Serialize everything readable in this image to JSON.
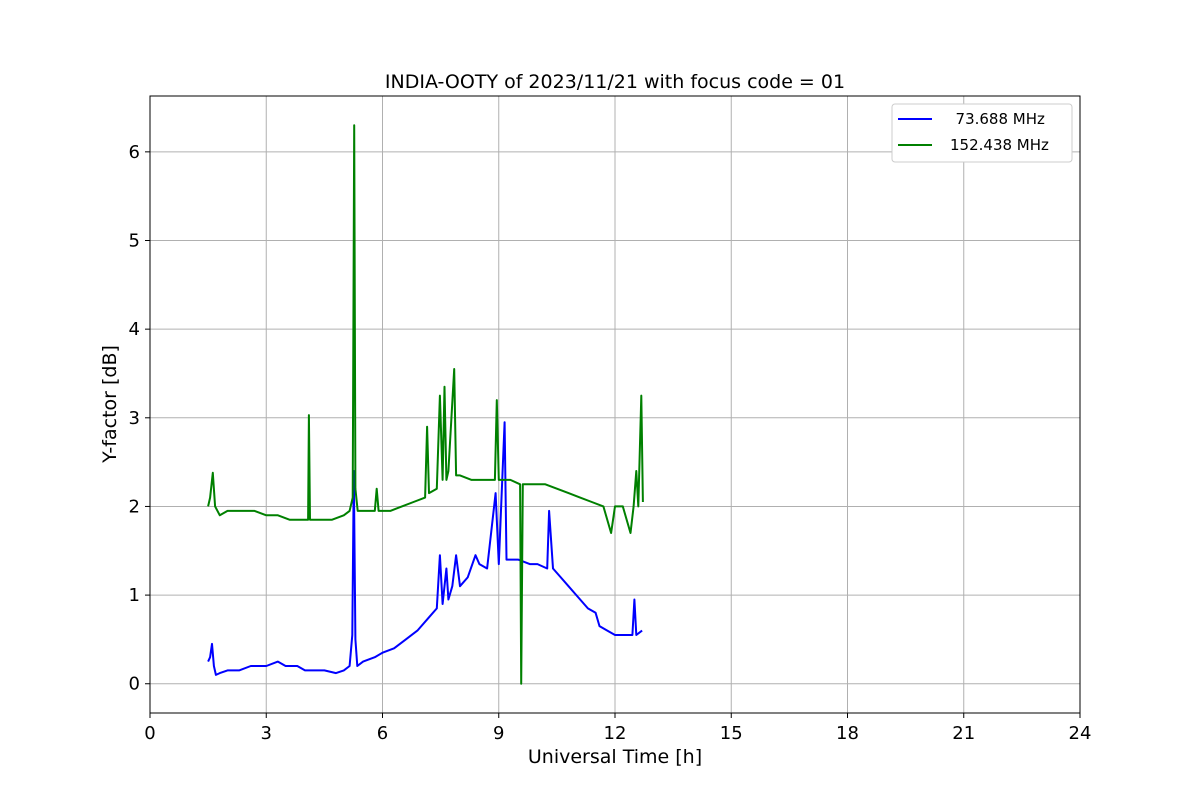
{
  "chart_data": {
    "type": "line",
    "title": "INDIA-OOTY of 2023/11/21 with focus code = 01",
    "xlabel": "Universal Time [h]",
    "ylabel": "Y-factor [dB]",
    "xlim": [
      0,
      24
    ],
    "ylim": [
      -0.33,
      6.63
    ],
    "xticks": [
      0,
      3,
      6,
      9,
      12,
      15,
      18,
      21,
      24
    ],
    "yticks": [
      0,
      1,
      2,
      3,
      4,
      5,
      6
    ],
    "grid": true,
    "legend_position": "top-right",
    "series": [
      {
        "name": "  73.688 MHz",
        "color": "#0000ff",
        "x": [
          1.5,
          1.55,
          1.6,
          1.65,
          1.7,
          1.8,
          2.0,
          2.3,
          2.6,
          3.0,
          3.3,
          3.5,
          3.8,
          4.0,
          4.3,
          4.5,
          4.8,
          5.0,
          5.15,
          5.22,
          5.26,
          5.3,
          5.35,
          5.5,
          5.8,
          6.0,
          6.3,
          6.6,
          6.9,
          7.2,
          7.4,
          7.48,
          7.55,
          7.65,
          7.7,
          7.8,
          7.9,
          8.0,
          8.2,
          8.4,
          8.5,
          8.7,
          8.92,
          9.0,
          9.15,
          9.2,
          9.3,
          9.5,
          9.8,
          10.0,
          10.25,
          10.3,
          10.4,
          10.6,
          10.8,
          11.0,
          11.3,
          11.5,
          11.6,
          11.8,
          12.0,
          12.3,
          12.45,
          12.5,
          12.55,
          12.7
        ],
        "y": [
          0.25,
          0.3,
          0.45,
          0.2,
          0.1,
          0.12,
          0.15,
          0.15,
          0.2,
          0.2,
          0.25,
          0.2,
          0.2,
          0.15,
          0.15,
          0.15,
          0.12,
          0.15,
          0.2,
          0.55,
          2.4,
          0.5,
          0.2,
          0.25,
          0.3,
          0.35,
          0.4,
          0.5,
          0.6,
          0.75,
          0.85,
          1.45,
          0.9,
          1.3,
          0.95,
          1.1,
          1.45,
          1.1,
          1.2,
          1.45,
          1.35,
          1.3,
          2.15,
          1.35,
          2.95,
          1.4,
          1.4,
          1.4,
          1.35,
          1.35,
          1.3,
          1.95,
          1.3,
          1.2,
          1.1,
          1.0,
          0.85,
          0.8,
          0.65,
          0.6,
          0.55,
          0.55,
          0.55,
          0.95,
          0.55,
          0.6
        ]
      },
      {
        "name": "152.438 MHz",
        "color": "#008000",
        "x": [
          1.5,
          1.55,
          1.62,
          1.68,
          1.8,
          2.0,
          2.3,
          2.7,
          3.0,
          3.3,
          3.6,
          3.9,
          4.08,
          4.1,
          4.13,
          4.4,
          4.7,
          5.0,
          5.15,
          5.23,
          5.27,
          5.3,
          5.36,
          5.5,
          5.8,
          5.85,
          5.9,
          6.2,
          6.5,
          6.8,
          7.1,
          7.15,
          7.2,
          7.4,
          7.48,
          7.55,
          7.6,
          7.65,
          7.7,
          7.85,
          7.9,
          8.0,
          8.3,
          8.6,
          8.9,
          8.95,
          9.0,
          9.3,
          9.55,
          9.58,
          9.62,
          9.9,
          10.2,
          10.5,
          10.8,
          11.1,
          11.4,
          11.7,
          11.9,
          12.0,
          12.2,
          12.4,
          12.48,
          12.55,
          12.6,
          12.68,
          12.72
        ],
        "y": [
          2.0,
          2.1,
          2.38,
          2.0,
          1.9,
          1.95,
          1.95,
          1.95,
          1.9,
          1.9,
          1.85,
          1.85,
          1.85,
          3.03,
          1.85,
          1.85,
          1.85,
          1.9,
          1.95,
          2.1,
          6.3,
          2.2,
          1.95,
          1.95,
          1.95,
          2.2,
          1.95,
          1.95,
          2.0,
          2.05,
          2.1,
          2.9,
          2.15,
          2.2,
          3.25,
          2.3,
          3.35,
          2.3,
          2.4,
          3.55,
          2.35,
          2.35,
          2.3,
          2.3,
          2.3,
          3.2,
          2.3,
          2.3,
          2.25,
          0.0,
          2.25,
          2.25,
          2.25,
          2.2,
          2.15,
          2.1,
          2.05,
          2.0,
          1.7,
          2.0,
          2.0,
          1.7,
          2.0,
          2.4,
          2.0,
          3.25,
          2.05
        ]
      }
    ]
  }
}
